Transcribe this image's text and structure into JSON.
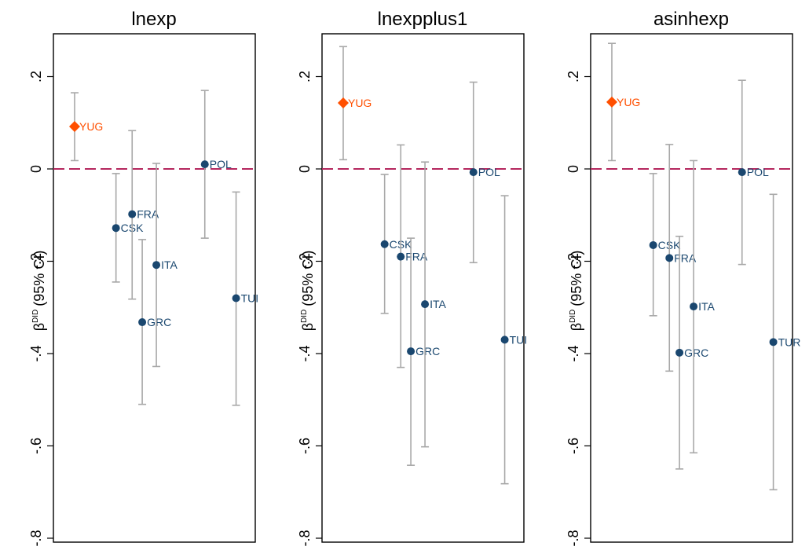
{
  "chart_data": [
    {
      "type": "scatter",
      "title": "lnexp",
      "ylabel": "(95% CI)",
      "ylabel_symbol": "β",
      "ylabel_sup": "DID",
      "ylim": [
        -0.8,
        0.2
      ],
      "yticks": [
        {
          "v": 0.2,
          "t": ".2"
        },
        {
          "v": 0,
          "t": "0"
        },
        {
          "v": -0.2,
          "t": "-.2"
        },
        {
          "v": -0.4,
          "t": "-.4"
        },
        {
          "v": -0.6,
          "t": "-.6"
        },
        {
          "v": -0.8,
          "t": "-.8"
        }
      ],
      "reference_line": 0,
      "points": [
        {
          "label": "YUG",
          "y": 0.092,
          "lo": 0.018,
          "hi": 0.165,
          "marker": "diamond",
          "color": "#ff4f00"
        },
        {
          "label": "CSK",
          "y": -0.128,
          "lo": -0.245,
          "hi": -0.01,
          "marker": "circle",
          "color": "#1a476f"
        },
        {
          "label": "FRA",
          "y": -0.098,
          "lo": -0.282,
          "hi": 0.083,
          "marker": "circle",
          "color": "#1a476f"
        },
        {
          "label": "GRC",
          "y": -0.332,
          "lo": -0.51,
          "hi": -0.153,
          "marker": "circle",
          "color": "#1a476f"
        },
        {
          "label": "ITA",
          "y": -0.208,
          "lo": -0.428,
          "hi": 0.012,
          "marker": "circle",
          "color": "#1a476f"
        },
        {
          "label": "POL",
          "y": 0.01,
          "lo": -0.15,
          "hi": 0.17,
          "marker": "circle",
          "color": "#1a476f"
        },
        {
          "label": "TUI",
          "y": -0.28,
          "lo": -0.512,
          "hi": -0.05,
          "marker": "circle",
          "color": "#1a476f"
        }
      ]
    },
    {
      "type": "scatter",
      "title": "lnexpplus1",
      "ylabel": "(95% CI)",
      "ylabel_symbol": "β",
      "ylabel_sup": "DID",
      "ylim": [
        -0.8,
        0.2
      ],
      "yticks": [
        {
          "v": 0.2,
          "t": ".2"
        },
        {
          "v": 0,
          "t": "0"
        },
        {
          "v": -0.2,
          "t": "-.2"
        },
        {
          "v": -0.4,
          "t": "-.4"
        },
        {
          "v": -0.6,
          "t": "-.6"
        },
        {
          "v": -0.8,
          "t": "-.8"
        }
      ],
      "reference_line": 0,
      "points": [
        {
          "label": "YUG",
          "y": 0.143,
          "lo": 0.02,
          "hi": 0.265,
          "marker": "diamond",
          "color": "#ff4f00"
        },
        {
          "label": "CSK",
          "y": -0.163,
          "lo": -0.313,
          "hi": -0.012,
          "marker": "circle",
          "color": "#1a476f"
        },
        {
          "label": "FRA",
          "y": -0.19,
          "lo": -0.43,
          "hi": 0.052,
          "marker": "circle",
          "color": "#1a476f"
        },
        {
          "label": "GRC",
          "y": -0.395,
          "lo": -0.642,
          "hi": -0.15,
          "marker": "circle",
          "color": "#1a476f"
        },
        {
          "label": "ITA",
          "y": -0.293,
          "lo": -0.602,
          "hi": 0.015,
          "marker": "circle",
          "color": "#1a476f"
        },
        {
          "label": "POL",
          "y": -0.007,
          "lo": -0.203,
          "hi": 0.188,
          "marker": "circle",
          "color": "#1a476f"
        },
        {
          "label": "TUI",
          "y": -0.37,
          "lo": -0.682,
          "hi": -0.058,
          "marker": "circle",
          "color": "#1a476f"
        }
      ]
    },
    {
      "type": "scatter",
      "title": "asinhexp",
      "ylabel": "(95% CI)",
      "ylabel_symbol": "β",
      "ylabel_sup": "DID",
      "ylim": [
        -0.8,
        0.2
      ],
      "yticks": [
        {
          "v": 0.2,
          "t": ".2"
        },
        {
          "v": 0,
          "t": "0"
        },
        {
          "v": -0.2,
          "t": "-.2"
        },
        {
          "v": -0.4,
          "t": "-.4"
        },
        {
          "v": -0.6,
          "t": "-.6"
        },
        {
          "v": -0.8,
          "t": "-.8"
        }
      ],
      "reference_line": 0,
      "points": [
        {
          "label": "YUG",
          "y": 0.145,
          "lo": 0.018,
          "hi": 0.272,
          "marker": "diamond",
          "color": "#ff4f00"
        },
        {
          "label": "CSK",
          "y": -0.165,
          "lo": -0.318,
          "hi": -0.01,
          "marker": "circle",
          "color": "#1a476f"
        },
        {
          "label": "FRA",
          "y": -0.193,
          "lo": -0.438,
          "hi": 0.053,
          "marker": "circle",
          "color": "#1a476f"
        },
        {
          "label": "GRC",
          "y": -0.398,
          "lo": -0.65,
          "hi": -0.146,
          "marker": "circle",
          "color": "#1a476f"
        },
        {
          "label": "ITA",
          "y": -0.298,
          "lo": -0.615,
          "hi": 0.018,
          "marker": "circle",
          "color": "#1a476f"
        },
        {
          "label": "POL",
          "y": -0.007,
          "lo": -0.207,
          "hi": 0.192,
          "marker": "circle",
          "color": "#1a476f"
        },
        {
          "label": "TUR",
          "y": -0.375,
          "lo": -0.695,
          "hi": -0.055,
          "marker": "circle",
          "color": "#1a476f"
        }
      ]
    }
  ],
  "colors": {
    "ci": "#a8a8a8",
    "reference_line": "#b5275e",
    "frame": "#000000"
  }
}
